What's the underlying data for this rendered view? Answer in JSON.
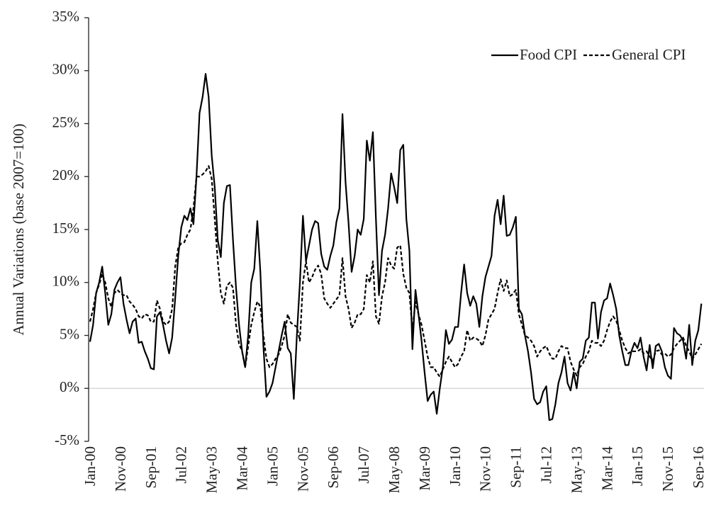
{
  "chart_data": {
    "type": "line",
    "y_label": "Annual Variations (base 2007=100)",
    "categories": [
      "Jan-00",
      null,
      null,
      null,
      null,
      null,
      null,
      null,
      null,
      null,
      "Nov-00",
      null,
      null,
      null,
      null,
      null,
      null,
      null,
      null,
      null,
      "Sep-01",
      null,
      null,
      null,
      null,
      null,
      null,
      null,
      null,
      null,
      "Jul-02",
      null,
      null,
      null,
      null,
      null,
      null,
      null,
      null,
      null,
      "May-03",
      null,
      null,
      null,
      null,
      null,
      null,
      null,
      null,
      null,
      "Mar-04",
      null,
      null,
      null,
      null,
      null,
      null,
      null,
      null,
      null,
      "Jan-05",
      null,
      null,
      null,
      null,
      null,
      null,
      null,
      null,
      null,
      "Nov-05",
      null,
      null,
      null,
      null,
      null,
      null,
      null,
      null,
      null,
      "Sep-06",
      null,
      null,
      null,
      null,
      null,
      null,
      null,
      null,
      null,
      "Jul-07",
      null,
      null,
      null,
      null,
      null,
      null,
      null,
      null,
      null,
      "May-08",
      null,
      null,
      null,
      null,
      null,
      null,
      null,
      null,
      null,
      "Mar-09",
      null,
      null,
      null,
      null,
      null,
      null,
      null,
      null,
      null,
      "Jan-10",
      null,
      null,
      null,
      null,
      null,
      null,
      null,
      null,
      null,
      "Nov-10",
      null,
      null,
      null,
      null,
      null,
      null,
      null,
      null,
      null,
      "Sep-11",
      null,
      null,
      null,
      null,
      null,
      null,
      null,
      null,
      null,
      "Jul-12",
      null,
      null,
      null,
      null,
      null,
      null,
      null,
      null,
      null,
      "May-13",
      null,
      null,
      null,
      null,
      null,
      null,
      null,
      null,
      null,
      "Mar-14",
      null,
      null,
      null,
      null,
      null,
      null,
      null,
      null,
      null,
      "Jan-15",
      null,
      null,
      null,
      null,
      null,
      null,
      null,
      null,
      null,
      "Nov-15",
      null,
      null,
      null,
      null,
      null,
      null,
      null,
      null,
      null,
      "Sep-16",
      null
    ],
    "series": [
      {
        "name": "Food CPI",
        "color": "#000000",
        "dash": "solid",
        "values": [
          4.4,
          6,
          9,
          10,
          11.5,
          9,
          6,
          7,
          9.3,
          10,
          10.5,
          8,
          6.5,
          5.2,
          6.3,
          6.6,
          4.3,
          4.4,
          3.5,
          2.8,
          1.9,
          1.8,
          6.8,
          7.2,
          6,
          4.5,
          3.3,
          4.8,
          8.5,
          12.5,
          15.2,
          16.3,
          15.9,
          17,
          15.5,
          20,
          26,
          27.5,
          29.7,
          27.5,
          22,
          19,
          14,
          12.4,
          17.5,
          19.1,
          19.2,
          14,
          9.5,
          6,
          3.5,
          2,
          5,
          10,
          11.3,
          15.8,
          11,
          4,
          -0.8,
          -0.3,
          0.5,
          2,
          3.5,
          5,
          6.3,
          3.8,
          3.3,
          -1,
          5,
          10,
          16.3,
          12,
          13.5,
          15,
          15.8,
          15.6,
          12.7,
          11.5,
          11.2,
          12.5,
          13.5,
          15.7,
          17,
          25.9,
          19.5,
          15.6,
          11,
          12.5,
          15,
          14.5,
          16,
          23.4,
          21.5,
          24.2,
          16,
          8.8,
          13,
          14.5,
          17,
          20.3,
          19,
          17.5,
          22.5,
          23,
          16,
          13,
          3.7,
          9.3,
          7,
          4.5,
          1.5,
          -1.2,
          -0.6,
          -0.3,
          -2.4,
          0,
          2,
          5.5,
          4.2,
          4.6,
          5.8,
          5.8,
          9,
          11.7,
          9,
          7.8,
          8.7,
          8,
          5.8,
          8.7,
          10.5,
          11.5,
          12.5,
          16.3,
          17.8,
          15.5,
          18.2,
          14.4,
          14.5,
          15.2,
          16.2,
          7.5,
          7,
          5,
          3.5,
          1.5,
          -1,
          -1.5,
          -1.3,
          -0.3,
          0.2,
          -3,
          -2.9,
          -1.5,
          0.5,
          1.5,
          3,
          0.5,
          -0.2,
          1.5,
          0,
          2.5,
          2.8,
          4.5,
          4.8,
          8.1,
          8.1,
          4.7,
          7.2,
          8.3,
          8.5,
          9.9,
          8.8,
          7.5,
          5,
          3.5,
          2.2,
          2.2,
          3.5,
          4.3,
          3.8,
          4.8,
          3,
          1.7,
          4.1,
          1.9,
          4,
          4.2,
          3.5,
          2,
          1.2,
          0.9,
          5.7,
          5.2,
          5,
          4.5,
          2.8,
          6,
          2.2,
          4.5,
          5.5,
          8
        ]
      },
      {
        "name": "General CPI",
        "color": "#000000",
        "dash": "dashed",
        "values": [
          6.3,
          7.5,
          9,
          9.8,
          10.8,
          10,
          8.5,
          7.7,
          9,
          9.3,
          9,
          8.8,
          8.8,
          8.2,
          7.9,
          7.5,
          6.8,
          6.6,
          7,
          6.9,
          6.3,
          6.3,
          8.3,
          7.5,
          6.3,
          6,
          6.3,
          7.5,
          11.5,
          13.3,
          13.7,
          13.8,
          14.5,
          15,
          17,
          20,
          20,
          20.2,
          20.5,
          21,
          19.8,
          16,
          12,
          9,
          8,
          9.7,
          10,
          9.5,
          6,
          4.2,
          3.5,
          2,
          4,
          6,
          7.2,
          8.2,
          7.7,
          5,
          2.8,
          2,
          2.3,
          2.8,
          3.2,
          4,
          5,
          7,
          6.2,
          6,
          5.8,
          4.5,
          10,
          12,
          10,
          10.5,
          11.2,
          11.6,
          10.8,
          8.5,
          8,
          7.6,
          8,
          8.4,
          8.8,
          12.3,
          8.7,
          7.5,
          5.7,
          6.2,
          7,
          7,
          7.5,
          10.7,
          10,
          12,
          6.8,
          6.1,
          8.7,
          10,
          12.3,
          11.6,
          11.3,
          13.3,
          13.5,
          10.8,
          9.5,
          9,
          5.5,
          8.2,
          7,
          6,
          4.5,
          3,
          2,
          2,
          1.5,
          1.1,
          1.8,
          2.5,
          3,
          2.5,
          2,
          2.3,
          3,
          3.5,
          5.5,
          4.5,
          4.8,
          4.7,
          4.5,
          4,
          5,
          6.5,
          7,
          7.5,
          9,
          10.3,
          9.2,
          10.2,
          8.7,
          8.9,
          9.3,
          7,
          6,
          5,
          4.8,
          4.5,
          4,
          3,
          3.5,
          3.8,
          4,
          3.3,
          2.8,
          2.8,
          3.5,
          4,
          3.8,
          3.8,
          2.5,
          1.8,
          1.2,
          2,
          2.3,
          3,
          3.5,
          4.5,
          4.3,
          4.3,
          4,
          4.5,
          5.5,
          6.3,
          6.8,
          6.4,
          5.5,
          4.5,
          3.8,
          3.3,
          3.5,
          3.5,
          3.5,
          3.7,
          3.3,
          3.5,
          3,
          2.6,
          3.5,
          3.6,
          3.2,
          3.3,
          3,
          3.2,
          3.8,
          4.2,
          4.5,
          4.8,
          4,
          3.5,
          2.8,
          3.2,
          3.7,
          4.2
        ]
      }
    ],
    "ylim": [
      -5,
      35
    ],
    "yticks": [
      {
        "value": -5,
        "label": "-5%"
      },
      {
        "value": 0,
        "label": "0%"
      },
      {
        "value": 5,
        "label": "5%"
      },
      {
        "value": 10,
        "label": "10%"
      },
      {
        "value": 15,
        "label": "15%"
      },
      {
        "value": 20,
        "label": "20%"
      },
      {
        "value": 25,
        "label": "25%"
      },
      {
        "value": 30,
        "label": "30%"
      },
      {
        "value": 35,
        "label": "35%"
      }
    ],
    "legend": "top-right"
  }
}
